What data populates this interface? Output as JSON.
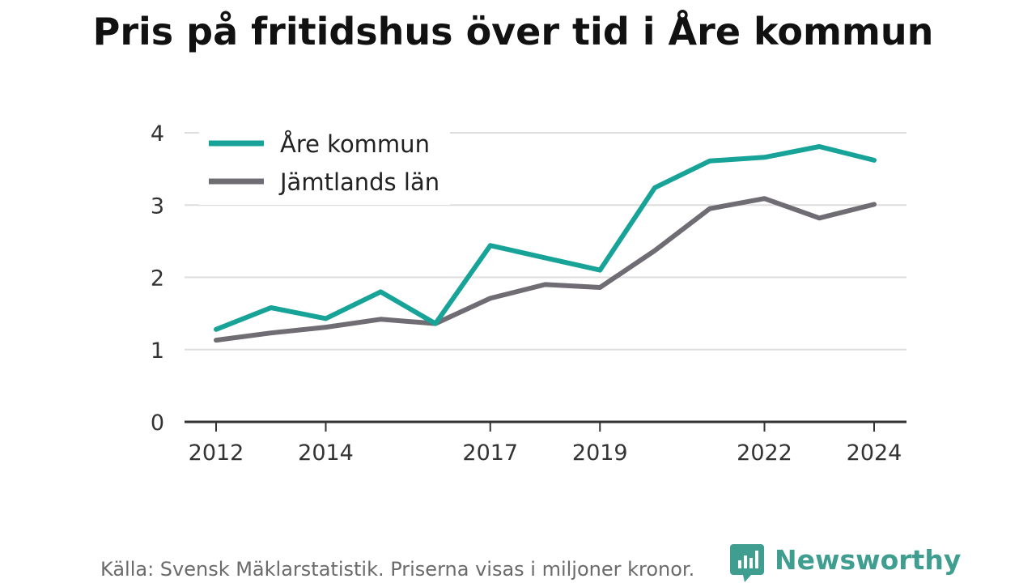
{
  "chart_data": {
    "type": "line",
    "title": "Pris på fritidshus över tid i Åre kommun",
    "x": [
      2012,
      2013,
      2014,
      2015,
      2016,
      2017,
      2018,
      2019,
      2020,
      2021,
      2022,
      2023,
      2024
    ],
    "x_tick_labels": [
      "2012",
      "2014",
      "2017",
      "2019",
      "2022",
      "2024"
    ],
    "y_tick_labels": [
      "0",
      "1",
      "2",
      "3",
      "4"
    ],
    "ylim": [
      0,
      4
    ],
    "xlim": [
      2012,
      2024
    ],
    "grid": "horizontal",
    "legend_position": "top-left",
    "series": [
      {
        "name": "Åre kommun",
        "color": "#17a398",
        "values": [
          1.28,
          1.58,
          1.43,
          1.8,
          1.36,
          2.44,
          2.27,
          2.1,
          3.24,
          3.61,
          3.66,
          3.81,
          3.62
        ]
      },
      {
        "name": "Jämtlands län",
        "color": "#6f6c73",
        "values": [
          1.13,
          1.23,
          1.31,
          1.42,
          1.36,
          1.71,
          1.9,
          1.86,
          2.37,
          2.95,
          3.09,
          2.82,
          3.01
        ]
      }
    ]
  },
  "footer": {
    "source": "Källa: Svensk Mäklarstatistik. Priserna visas i miljoner kronor.",
    "brand": "Newsworthy",
    "brand_color": "#3f9e8f",
    "brand_icon": "bar-chart-speech-bubble-icon"
  }
}
